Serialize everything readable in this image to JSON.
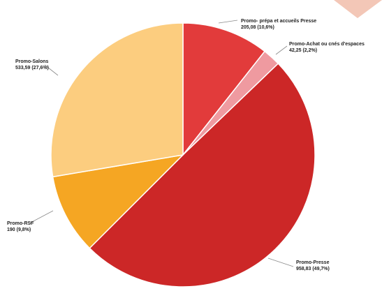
{
  "chart_data": {
    "type": "pie",
    "title": "",
    "start_angle_deg": -90,
    "direction": "clockwise",
    "slices": [
      {
        "name": "Promo- prépa et accueils Presse",
        "value_label": "205,08 (10,6%)",
        "value": 205.08,
        "percent": 10.6,
        "color": "#e23b3b"
      },
      {
        "name": "Promo-Achat ou cnés d'espaces",
        "value_label": "42,25 (2,2%)",
        "value": 42.25,
        "percent": 2.2,
        "color": "#ef9aa0"
      },
      {
        "name": "Promo-Presse",
        "value_label": "958,83 (49,7%)",
        "value": 958.83,
        "percent": 49.7,
        "color": "#cc2727"
      },
      {
        "name": "Promo-RSF",
        "value_label": "190 (9,8%)",
        "value": 190,
        "percent": 9.8,
        "color": "#f5a623"
      },
      {
        "name": "Promo-Salons",
        "value_label": "533,59 (27,6%)",
        "value": 533.59,
        "percent": 27.6,
        "color": "#fccd7f"
      }
    ],
    "legend": "none",
    "data_labels": "outside-with-leader-lines"
  },
  "decoration": {
    "corner_shape_color": "#f3c7b7"
  }
}
